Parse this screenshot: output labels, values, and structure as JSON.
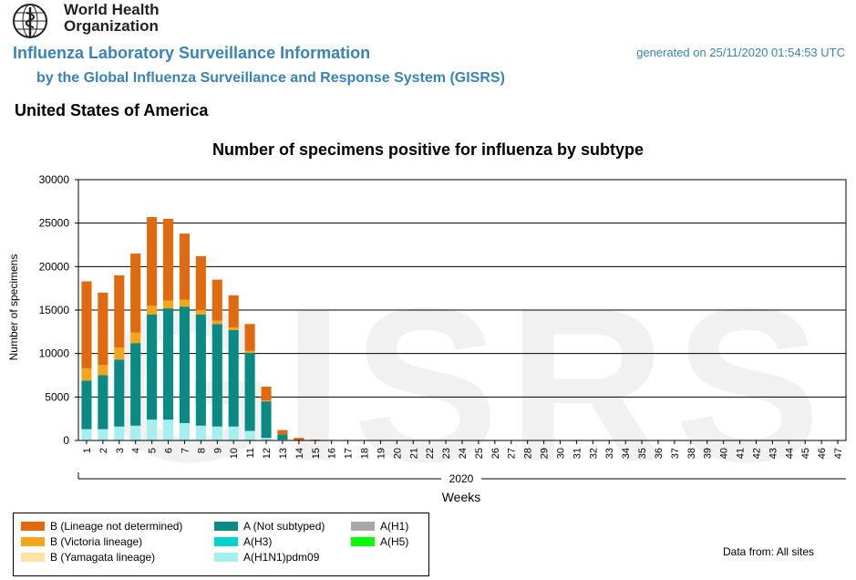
{
  "header": {
    "org_line1": "World Health",
    "org_line2": "Organization",
    "title": "Influenza Laboratory Surveillance Information",
    "subtitle": "by the Global Influenza Surveillance and Response System (GISRS)",
    "generated": "generated on 25/11/2020 01:54:53 UTC",
    "country": "United States of America"
  },
  "watermark": "GISRS",
  "footer": {
    "data_from": "Data from: All sites"
  },
  "colors": {
    "b_lineage_nd": "#e06a10",
    "b_victoria": "#f5a51b",
    "b_yamagata": "#fde3a7",
    "a_not_subtyped": "#0a8a83",
    "a_h3": "#00d2cc",
    "a_h1n1pdm09": "#a5f0ee",
    "a_h1": "#a8a8a8",
    "a_h5": "#00ff00"
  },
  "chart_data": {
    "type": "bar",
    "stacked": true,
    "title": "Number of specimens positive for influenza by subtype",
    "xlabel": "Weeks",
    "ylabel": "Number of specimens",
    "year_label": "2020",
    "ylim": [
      0,
      30000
    ],
    "yticks": [
      0,
      5000,
      10000,
      15000,
      20000,
      25000,
      30000
    ],
    "grid": true,
    "legend_position": "bottom-left",
    "categories": [
      "1",
      "2",
      "3",
      "4",
      "5",
      "6",
      "7",
      "8",
      "9",
      "10",
      "11",
      "12",
      "13",
      "14",
      "15",
      "16",
      "17",
      "18",
      "19",
      "20",
      "21",
      "22",
      "23",
      "24",
      "25",
      "26",
      "27",
      "28",
      "29",
      "30",
      "31",
      "32",
      "33",
      "34",
      "35",
      "36",
      "37",
      "38",
      "39",
      "40",
      "41",
      "42",
      "43",
      "44",
      "45",
      "46",
      "47"
    ],
    "series": [
      {
        "name": "A(H1N1)pdm09",
        "color_key": "a_h1n1pdm09",
        "values": [
          1300,
          1300,
          1600,
          1700,
          2400,
          2400,
          2000,
          1700,
          1600,
          1600,
          1100,
          300,
          100,
          0,
          0,
          0,
          0,
          0,
          0,
          0,
          0,
          0,
          0,
          0,
          0,
          0,
          0,
          0,
          0,
          0,
          0,
          0,
          0,
          0,
          0,
          0,
          0,
          0,
          0,
          0,
          0,
          0,
          0,
          0,
          0,
          0,
          0
        ]
      },
      {
        "name": "A(H3)",
        "color_key": "a_h3",
        "values": [
          0,
          0,
          0,
          0,
          0,
          0,
          0,
          0,
          0,
          0,
          0,
          0,
          0,
          0,
          0,
          0,
          0,
          0,
          0,
          0,
          0,
          0,
          0,
          0,
          0,
          0,
          0,
          0,
          0,
          0,
          0,
          0,
          0,
          0,
          0,
          0,
          0,
          0,
          0,
          0,
          0,
          0,
          0,
          0,
          0,
          0,
          0
        ]
      },
      {
        "name": "A(H1)",
        "color_key": "a_h1",
        "values": [
          0,
          0,
          0,
          0,
          0,
          0,
          0,
          0,
          0,
          0,
          0,
          0,
          0,
          0,
          0,
          0,
          0,
          0,
          0,
          0,
          0,
          0,
          0,
          0,
          0,
          0,
          0,
          0,
          0,
          0,
          0,
          0,
          0,
          0,
          0,
          0,
          0,
          0,
          0,
          0,
          0,
          0,
          0,
          0,
          0,
          0,
          0
        ]
      },
      {
        "name": "A(H5)",
        "color_key": "a_h5",
        "values": [
          0,
          0,
          0,
          0,
          0,
          0,
          0,
          0,
          0,
          0,
          0,
          0,
          0,
          0,
          0,
          0,
          0,
          0,
          0,
          0,
          0,
          0,
          0,
          0,
          0,
          0,
          0,
          0,
          0,
          0,
          0,
          0,
          0,
          0,
          0,
          0,
          0,
          0,
          0,
          0,
          0,
          0,
          0,
          0,
          0,
          0,
          0
        ]
      },
      {
        "name": "A (Not subtyped)",
        "color_key": "a_not_subtyped",
        "values": [
          5600,
          6200,
          7700,
          9500,
          12100,
          12800,
          13400,
          12800,
          11800,
          11100,
          9000,
          4200,
          600,
          0,
          0,
          0,
          0,
          0,
          0,
          0,
          0,
          0,
          0,
          0,
          0,
          0,
          0,
          0,
          0,
          0,
          0,
          0,
          0,
          0,
          0,
          0,
          0,
          0,
          0,
          0,
          0,
          0,
          0,
          0,
          0,
          0,
          0
        ]
      },
      {
        "name": "B (Yamagata lineage)",
        "color_key": "b_yamagata",
        "values": [
          0,
          0,
          0,
          0,
          0,
          0,
          0,
          0,
          0,
          0,
          0,
          0,
          0,
          0,
          0,
          0,
          0,
          0,
          0,
          0,
          0,
          0,
          0,
          0,
          0,
          0,
          0,
          0,
          0,
          0,
          0,
          0,
          0,
          0,
          0,
          0,
          0,
          0,
          0,
          0,
          0,
          0,
          0,
          0,
          0,
          0,
          0
        ]
      },
      {
        "name": "B (Victoria lineage)",
        "color_key": "b_victoria",
        "values": [
          1400,
          1200,
          1400,
          1200,
          1000,
          900,
          800,
          500,
          400,
          300,
          200,
          100,
          0,
          0,
          0,
          0,
          0,
          0,
          0,
          0,
          0,
          0,
          0,
          0,
          0,
          0,
          0,
          0,
          0,
          0,
          0,
          0,
          0,
          0,
          0,
          0,
          0,
          0,
          0,
          0,
          0,
          0,
          0,
          0,
          0,
          0,
          0
        ]
      },
      {
        "name": "B (Lineage not determined)",
        "color_key": "b_lineage_nd",
        "values": [
          10000,
          8300,
          8300,
          9100,
          10200,
          9400,
          7600,
          6200,
          4700,
          3700,
          3100,
          1600,
          500,
          300,
          100,
          50,
          30,
          20,
          0,
          0,
          0,
          0,
          0,
          0,
          0,
          0,
          0,
          0,
          0,
          0,
          0,
          0,
          0,
          0,
          0,
          0,
          0,
          0,
          0,
          0,
          0,
          0,
          0,
          0,
          0,
          0,
          0
        ]
      }
    ],
    "legend": [
      {
        "label": "B (Lineage not determined)",
        "color_key": "b_lineage_nd"
      },
      {
        "label": "B (Victoria lineage)",
        "color_key": "b_victoria"
      },
      {
        "label": "B (Yamagata lineage)",
        "color_key": "b_yamagata"
      },
      {
        "label": "A (Not subtyped)",
        "color_key": "a_not_subtyped"
      },
      {
        "label": "A(H3)",
        "color_key": "a_h3"
      },
      {
        "label": "A(H1N1)pdm09",
        "color_key": "a_h1n1pdm09"
      },
      {
        "label": "A(H1)",
        "color_key": "a_h1"
      },
      {
        "label": "A(H5)",
        "color_key": "a_h5"
      }
    ]
  }
}
